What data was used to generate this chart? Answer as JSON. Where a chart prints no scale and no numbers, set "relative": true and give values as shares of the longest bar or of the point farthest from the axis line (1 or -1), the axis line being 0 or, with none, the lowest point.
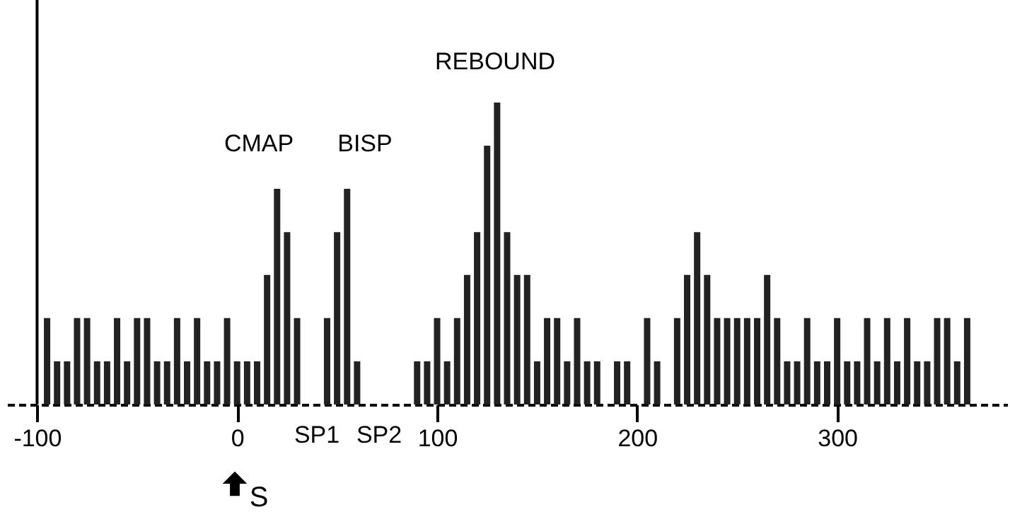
{
  "chart_data": {
    "type": "bar",
    "relative": true,
    "color": "#222222",
    "x": [
      -95,
      -90,
      -85,
      -80,
      -75,
      -70,
      -65,
      -60,
      -55,
      -50,
      -45,
      -40,
      -35,
      -30,
      -25,
      -20,
      -15,
      -10,
      -5,
      0,
      5,
      10,
      15,
      20,
      25,
      30,
      45,
      50,
      55,
      60,
      90,
      95,
      100,
      105,
      110,
      115,
      120,
      125,
      130,
      135,
      140,
      145,
      150,
      155,
      160,
      165,
      170,
      175,
      180,
      190,
      195,
      205,
      210,
      220,
      225,
      230,
      235,
      240,
      245,
      250,
      255,
      260,
      265,
      270,
      275,
      280,
      285,
      290,
      295,
      300,
      305,
      310,
      315,
      320,
      325,
      330,
      335,
      340,
      345,
      350,
      355,
      360,
      365
    ],
    "values": [
      0.286,
      0.143,
      0.143,
      0.286,
      0.286,
      0.143,
      0.143,
      0.286,
      0.143,
      0.286,
      0.286,
      0.143,
      0.143,
      0.286,
      0.143,
      0.286,
      0.143,
      0.143,
      0.286,
      0.143,
      0.143,
      0.143,
      0.429,
      0.714,
      0.571,
      0.286,
      0.286,
      0.571,
      0.714,
      0.143,
      0.143,
      0.143,
      0.286,
      0.143,
      0.286,
      0.429,
      0.571,
      0.857,
      1,
      0.571,
      0.429,
      0.429,
      0.143,
      0.286,
      0.286,
      0.143,
      0.286,
      0.143,
      0.143,
      0.143,
      0.143,
      0.286,
      0.143,
      0.286,
      0.429,
      0.571,
      0.429,
      0.286,
      0.286,
      0.286,
      0.286,
      0.286,
      0.429,
      0.286,
      0.143,
      0.143,
      0.286,
      0.143,
      0.143,
      0.286,
      0.143,
      0.143,
      0.286,
      0.143,
      0.286,
      0.143,
      0.286,
      0.143,
      0.143,
      0.286,
      0.286,
      0.143,
      0.286
    ],
    "xlim": [
      -115,
      385
    ],
    "xticks": [
      -100,
      0,
      100,
      200,
      300
    ],
    "tick_labels": "x",
    "grid": false,
    "ref_lines": [
      {
        "axis": "x",
        "value": -100,
        "color": "#000000"
      }
    ],
    "annotations": [
      "CMAP",
      "BISP",
      "REBOUND",
      "SP1",
      "SP2",
      "S"
    ]
  }
}
